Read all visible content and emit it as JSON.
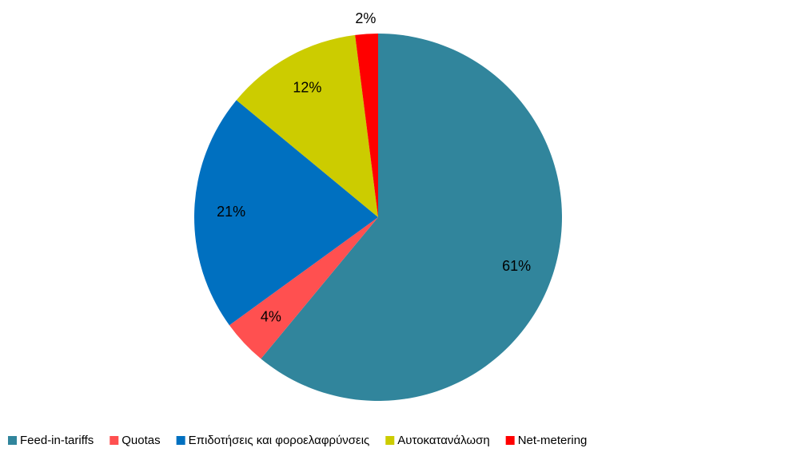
{
  "chart_data": {
    "type": "pie",
    "categories": [
      "Feed-in-tariffs",
      "Quotas",
      "Επιδοτήσεις και φοροελαφρύνσεις",
      "Αυτοκατανάλωση",
      "Net-metering"
    ],
    "values": [
      61,
      4,
      21,
      12,
      2
    ],
    "value_labels": [
      "61%",
      "4%",
      "21%",
      "12%",
      "2%"
    ],
    "colors": [
      "#31859c",
      "#ff5050",
      "#0070c0",
      "#cccc00",
      "#ff0000"
    ],
    "legend": "bottom"
  }
}
